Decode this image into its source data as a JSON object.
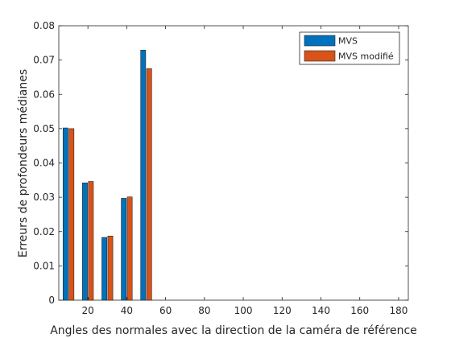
{
  "chart_data": {
    "type": "bar",
    "xlabel": "Angles des normales avec la direction de la caméra de référence",
    "ylabel": "Erreurs de profondeurs médianes",
    "xlim": [
      5,
      185
    ],
    "ylim": [
      0,
      0.08
    ],
    "xticks": [
      20,
      40,
      60,
      80,
      100,
      120,
      140,
      160,
      180
    ],
    "yticks": [
      0,
      0.01,
      0.02,
      0.03,
      0.04,
      0.05,
      0.06,
      0.07,
      0.08
    ],
    "ytick_labels": [
      "0",
      "0.01",
      "0.02",
      "0.03",
      "0.04",
      "0.05",
      "0.06",
      "0.07",
      "0.08"
    ],
    "x": [
      10,
      20,
      30,
      40,
      50
    ],
    "series": [
      {
        "name": "MVS",
        "color": "#0072BD",
        "values": [
          0.0502,
          0.0342,
          0.0183,
          0.0297,
          0.0729
        ]
      },
      {
        "name": "MVS modifié",
        "color": "#D95319",
        "values": [
          0.05,
          0.0346,
          0.0187,
          0.0301,
          0.0675
        ]
      }
    ],
    "grid": false,
    "legend_position": "top-right"
  }
}
